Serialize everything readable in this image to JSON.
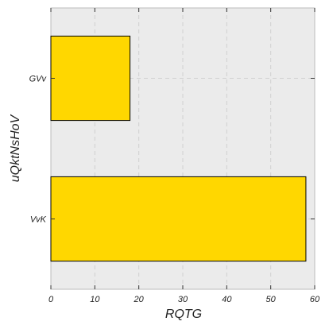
{
  "chart_data": {
    "type": "bar",
    "orientation": "horizontal",
    "title": "",
    "xlabel": "RQTG",
    "ylabel": "uQktNsHoV",
    "categories": [
      "GVv",
      "VvK"
    ],
    "values": [
      18,
      58
    ],
    "xlim": [
      0,
      60
    ],
    "xticks": [
      0,
      10,
      20,
      30,
      40,
      50,
      60
    ],
    "grid": true,
    "legend": "none",
    "colors": {
      "bar_fill": "#FFD700",
      "bar_edge": "#000000",
      "plot_background": "#EBEBEB",
      "grid": "#D0D0D0"
    }
  }
}
